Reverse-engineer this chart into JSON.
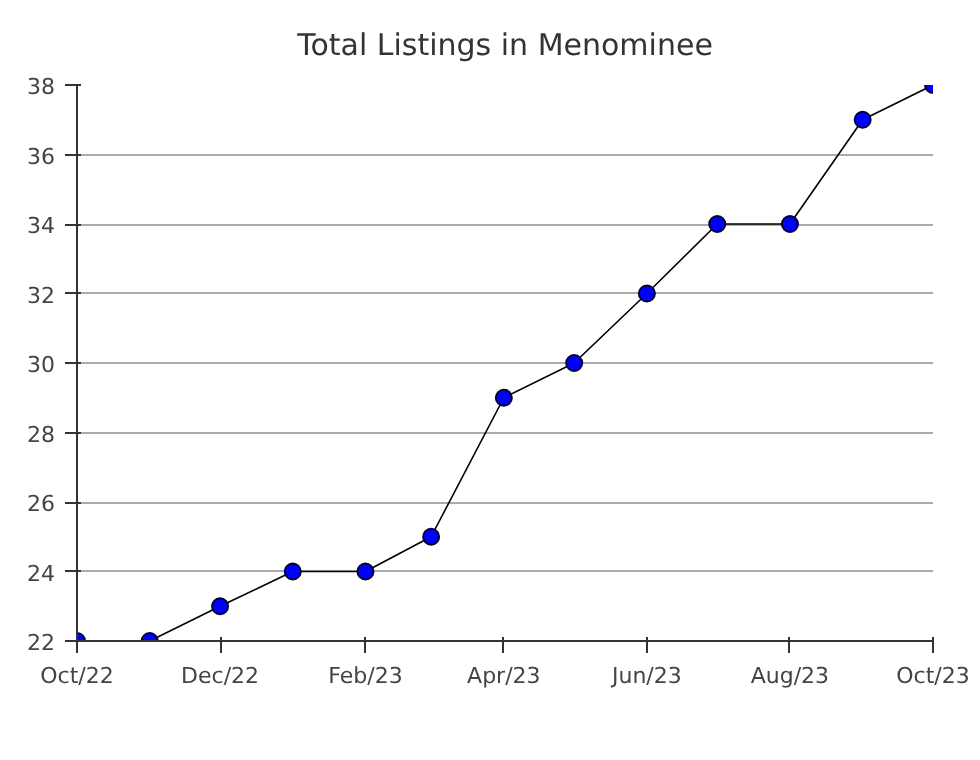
{
  "chart_data": {
    "type": "line",
    "title": "Total Listings in Menominee",
    "x": [
      "2022-10",
      "2022-11",
      "2022-12",
      "2023-01",
      "2023-02",
      "2023-03",
      "2023-04",
      "2023-05",
      "2023-06",
      "2023-07",
      "2023-08",
      "2023-09",
      "2023-10"
    ],
    "series": [
      {
        "color": "#0000ff",
        "values": [
          22,
          22,
          23,
          24,
          24,
          25,
          29,
          30,
          32,
          34,
          34,
          37,
          38
        ]
      }
    ],
    "xlim": [
      "2022-10",
      "2023-10"
    ],
    "xticks": [
      {
        "value": "2022-10",
        "label": "Oct/22"
      },
      {
        "value": "2022-12",
        "label": "Dec/22"
      },
      {
        "value": "2023-02",
        "label": "Feb/23"
      },
      {
        "value": "2023-04",
        "label": "Apr/23"
      },
      {
        "value": "2023-06",
        "label": "Jun/23"
      },
      {
        "value": "2023-08",
        "label": "Aug/23"
      },
      {
        "value": "2023-10",
        "label": "Oct/23"
      }
    ],
    "ylim": [
      22,
      38
    ],
    "yticks": [
      22,
      24,
      26,
      28,
      30,
      32,
      34,
      36,
      38
    ],
    "grid": "y",
    "marker": "circle",
    "line_style": "solid"
  }
}
